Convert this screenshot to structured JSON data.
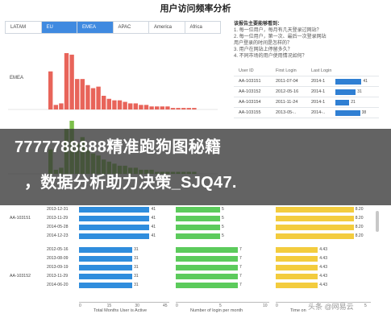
{
  "title": "用户访问频率分析",
  "tabs": [
    {
      "label": "LATAM",
      "active": false
    },
    {
      "label": "EU",
      "active": true
    },
    {
      "label": "EMEA",
      "active": true
    },
    {
      "label": "APAC",
      "active": false
    },
    {
      "label": "America",
      "active": false
    },
    {
      "label": "Africa",
      "active": false
    }
  ],
  "histogram": {
    "series": [
      {
        "label": "EMEA",
        "color": "#e8645a",
        "values": [
          25,
          3,
          4,
          37,
          36,
          20,
          20,
          16,
          14,
          15,
          9,
          7,
          6,
          6,
          5,
          4,
          4,
          3,
          3,
          2,
          2,
          2,
          2,
          1,
          1,
          1,
          1,
          1
        ]
      },
      {
        "label": "",
        "color": "#7cbf4a",
        "values": [
          12,
          2,
          3,
          22,
          26,
          15,
          18,
          12,
          10,
          9,
          7,
          6,
          5,
          4,
          4,
          3,
          3,
          2,
          2,
          2,
          1,
          1,
          1,
          1,
          1,
          1,
          1,
          1
        ]
      }
    ]
  },
  "questions": {
    "heading": "该报告主要能够看到：",
    "items": [
      "1. 每一位用户，每月有几天登录过网站？",
      "2. 每一位用户，第一次、最后一次登录网站",
      "用户登录的时间是怎样的？",
      "3. 用户在网站上停留多久？",
      "4. 不同市场的用户使用情况如何？"
    ]
  },
  "top_table": {
    "headers": [
      "User ID",
      "First Login",
      "Last Login",
      ""
    ],
    "rows": [
      {
        "id": "AA-103151",
        "first": "2011-07-04",
        "last": "2014-1",
        "value": 41,
        "bar": 0.9
      },
      {
        "id": "AA-103152",
        "first": "2012-05-16",
        "last": "2014-1",
        "value": 31,
        "bar": 0.7
      },
      {
        "id": "AA-103154",
        "first": "2011-11-24",
        "last": "2014-1",
        "value": 21,
        "bar": 0.48
      },
      {
        "id": "AA-103155",
        "first": "2013-05-..",
        "last": "2014-..",
        "value": 38,
        "bar": 0.85
      }
    ]
  },
  "banner": {
    "line1": "7777788888精准跑狗图秘籍",
    "line2": "，数据分析助力决策_SJQ47."
  },
  "bottom_table": {
    "rows": [
      {
        "id": "",
        "date": "2013-12-31",
        "blue": 41,
        "green": 5,
        "yellow": "8.20"
      },
      {
        "id": "AA-103151",
        "date": "2013-11-29",
        "blue": 41,
        "green": 5,
        "yellow": "8.20"
      },
      {
        "id": "",
        "date": "2014-05-28",
        "blue": 41,
        "green": 5,
        "yellow": "8.20"
      },
      {
        "id": "",
        "date": "2014-12-23",
        "blue": 41,
        "green": 5,
        "yellow": "8.20"
      },
      {
        "id": "",
        "date": "2012-05-16",
        "blue": 31,
        "green": 7,
        "yellow": "4.43"
      },
      {
        "id": "",
        "date": "2013-08-09",
        "blue": 31,
        "green": 7,
        "yellow": "4.43"
      },
      {
        "id": "",
        "date": "2013-09-19",
        "blue": 31,
        "green": 7,
        "yellow": "4.43"
      },
      {
        "id": "AA-103152",
        "date": "2013-11-29",
        "blue": 31,
        "green": 7,
        "yellow": "4.43"
      },
      {
        "id": "",
        "date": "2014-06-20",
        "blue": 31,
        "green": 7,
        "yellow": "4.43"
      }
    ],
    "axes": {
      "blue": {
        "ticks": [
          "0",
          "15",
          "30",
          "45"
        ],
        "title": "Total Months User is Active",
        "max": 45
      },
      "green": {
        "ticks": [
          "0",
          "5",
          "10"
        ],
        "title": "Number of login per month",
        "max": 10
      },
      "yellow": {
        "ticks": [
          "0",
          "5"
        ],
        "title": "Time on ",
        "max": 10
      }
    }
  },
  "watermark": "头条 @网易云"
}
